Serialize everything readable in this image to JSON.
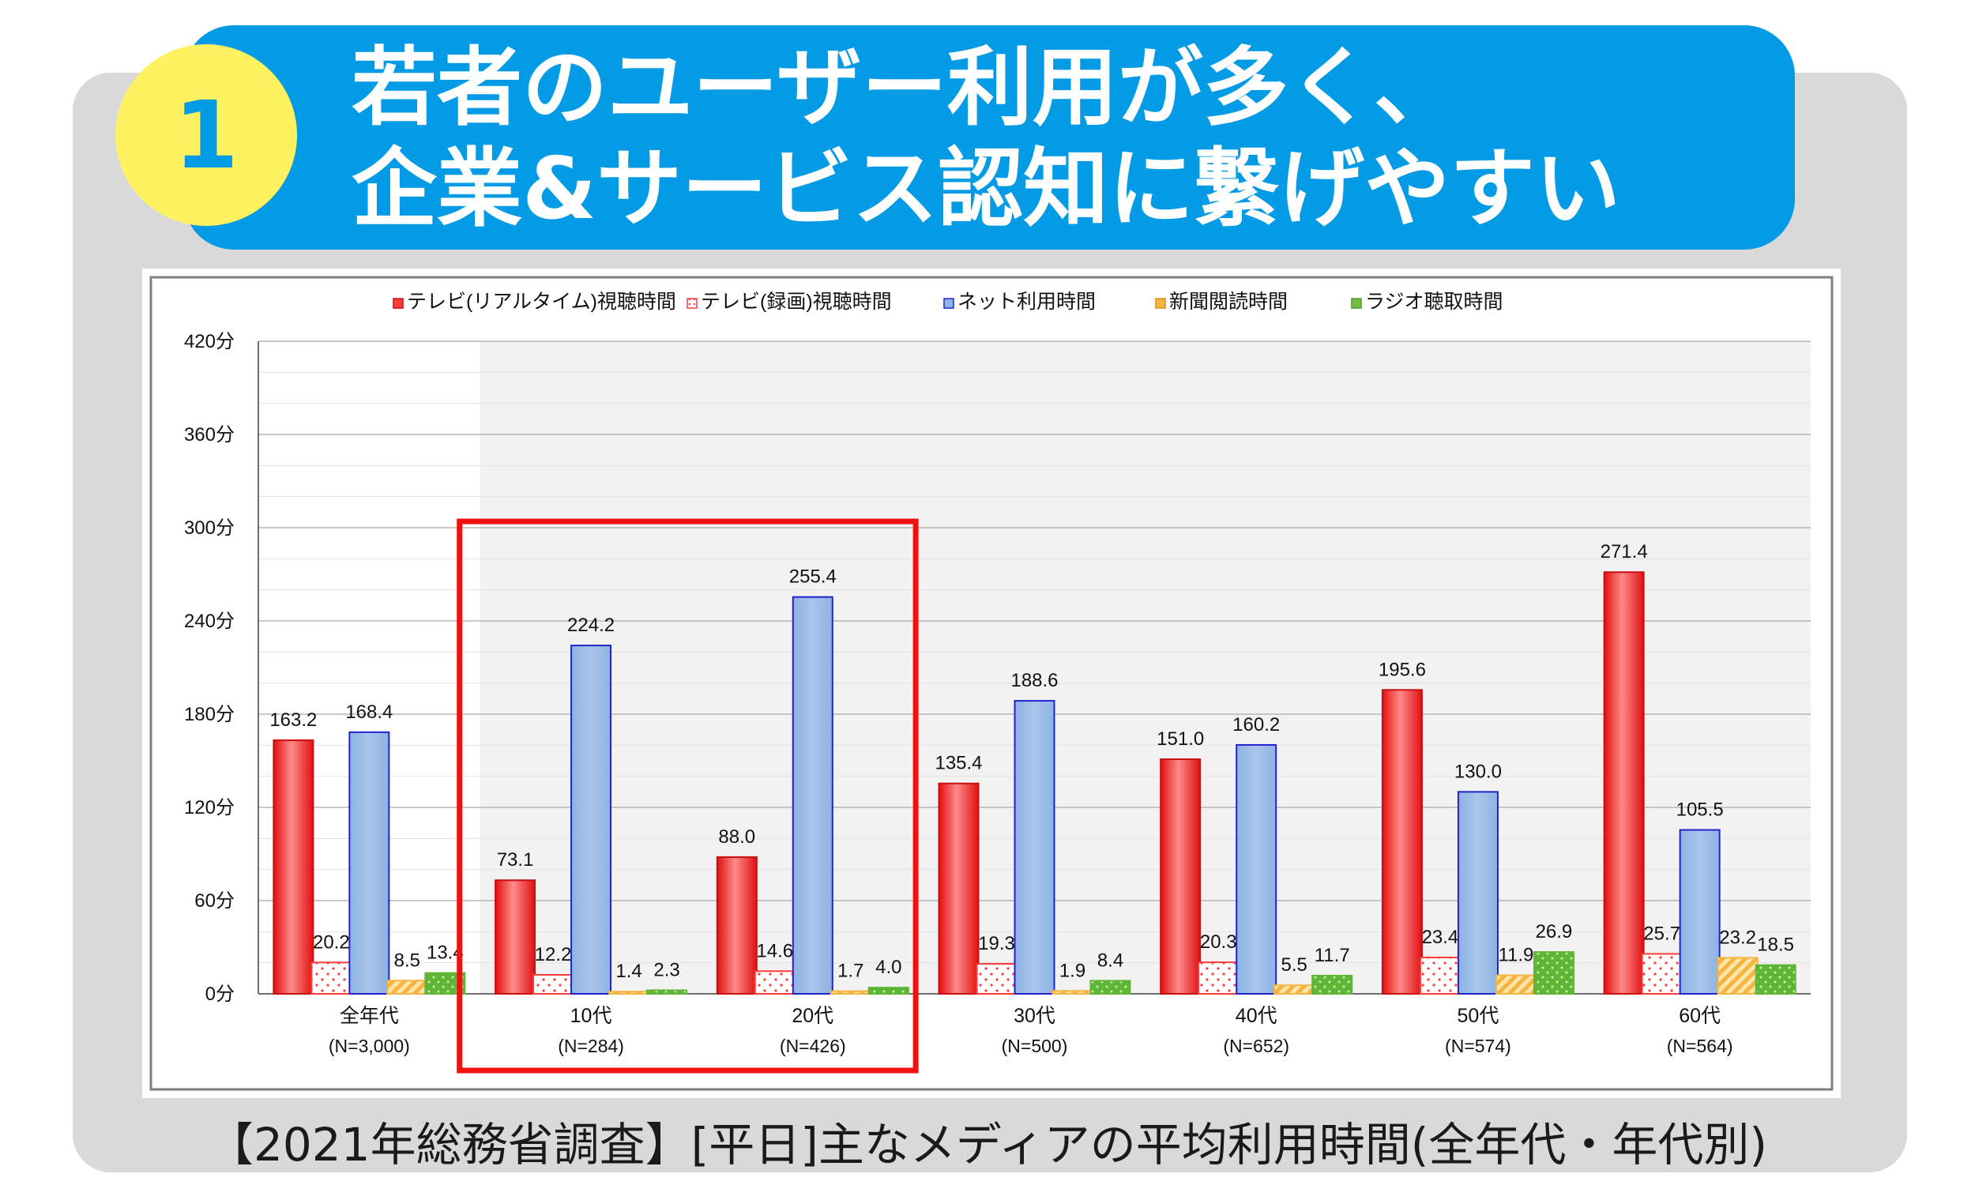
{
  "badge": {
    "number": "1"
  },
  "headline": {
    "line1": "若者のユーザー利用が多く、",
    "line2": "企業&サービス認知に繋げやすい"
  },
  "caption": "【2021年総務省調査】[平日]主なメディアの平均利用時間(全年代・年代別)",
  "colors": {
    "banner": "#039be5",
    "badge": "#fff261",
    "tv_realtime": "#ff3b3b",
    "tv_recorded": "#ff3b3b",
    "net": "#8eb4e3",
    "net_border": "#2222cc",
    "newspaper": "#f5b342",
    "radio": "#70c040",
    "highlight": "#ee1111"
  },
  "chart_data": {
    "type": "bar",
    "categories": [
      {
        "label": "全年代",
        "n": "(N=3,000)"
      },
      {
        "label": "10代",
        "n": "(N=284)"
      },
      {
        "label": "20代",
        "n": "(N=426)"
      },
      {
        "label": "30代",
        "n": "(N=500)"
      },
      {
        "label": "40代",
        "n": "(N=652)"
      },
      {
        "label": "50代",
        "n": "(N=574)"
      },
      {
        "label": "60代",
        "n": "(N=564)"
      }
    ],
    "series": [
      {
        "name": "テレビ(リアルタイム)視聴時間",
        "values": [
          163.2,
          73.1,
          88.0,
          135.4,
          151.0,
          195.6,
          271.4
        ]
      },
      {
        "name": "テレビ(録画)視聴時間",
        "values": [
          20.2,
          12.2,
          14.6,
          19.3,
          20.3,
          23.4,
          25.7
        ]
      },
      {
        "name": "ネット利用時間",
        "values": [
          168.4,
          224.2,
          255.4,
          188.6,
          160.2,
          130.0,
          105.5
        ]
      },
      {
        "name": "新聞閲読時間",
        "values": [
          8.5,
          1.4,
          1.7,
          1.9,
          5.5,
          11.9,
          23.2
        ]
      },
      {
        "name": "ラジオ聴取時間",
        "values": [
          13.4,
          2.3,
          4.0,
          8.4,
          11.7,
          26.9,
          18.5
        ]
      }
    ],
    "yticks": [
      "0分",
      "60分",
      "120分",
      "180分",
      "240分",
      "300分",
      "360分",
      "420分"
    ],
    "ylim": [
      0,
      420
    ],
    "legend": "top",
    "grid": true,
    "highlighted_categories": [
      "10代",
      "20代"
    ]
  }
}
